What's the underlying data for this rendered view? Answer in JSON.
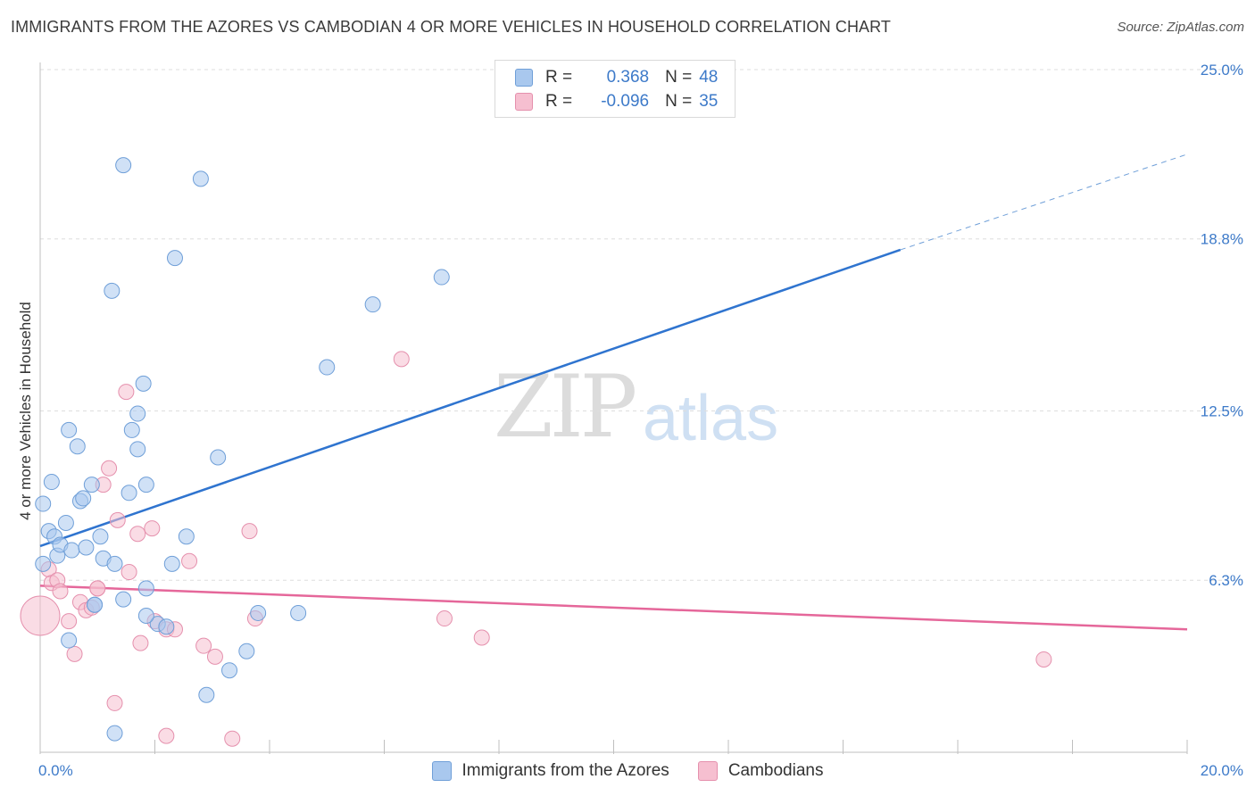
{
  "title": "IMMIGRANTS FROM THE AZORES VS CAMBODIAN 4 OR MORE VEHICLES IN HOUSEHOLD CORRELATION CHART",
  "source": "Source: ZipAtlas.com",
  "watermark": {
    "zip": "ZIP",
    "atlas": "atlas"
  },
  "legend": {
    "r_label": "R =",
    "n_label": "N =",
    "series1": {
      "r": "0.368",
      "n": "48"
    },
    "series2": {
      "r": "-0.096",
      "n": "35"
    }
  },
  "colors": {
    "blue_fill": "#a9c8ee",
    "blue_stroke": "#6f9fd8",
    "blue_line": "#2f74cf",
    "pink_fill": "#f6bfd0",
    "pink_stroke": "#e590ad",
    "pink_line": "#e5679a",
    "tick_text": "#3d7ac9"
  },
  "chart_data": {
    "type": "scatter",
    "title": "IMMIGRANTS FROM THE AZORES VS CAMBODIAN 4 OR MORE VEHICLES IN HOUSEHOLD CORRELATION CHART",
    "xlabel": "",
    "ylabel": "4 or more Vehicles in Household",
    "xlim": [
      0,
      20
    ],
    "ylim": [
      0,
      25
    ],
    "x_tick_labels": [
      {
        "value": 0,
        "label": "0.0%"
      },
      {
        "value": 20,
        "label": "20.0%"
      }
    ],
    "y_tick_labels": [
      {
        "value": 6.3,
        "label": "6.3%"
      },
      {
        "value": 12.5,
        "label": "12.5%"
      },
      {
        "value": 18.8,
        "label": "18.8%"
      },
      {
        "value": 25.0,
        "label": "25.0%"
      }
    ],
    "series": [
      {
        "name": "Immigrants from the Azores",
        "r": 0.368,
        "n": 48,
        "trend": {
          "x0": 0,
          "y0": 7.55,
          "x1": 15.0,
          "y1": 18.4,
          "dash_x1": 20.0,
          "dash_y1": 21.9
        },
        "points": [
          [
            0.05,
            9.1
          ],
          [
            0.05,
            6.9
          ],
          [
            0.15,
            8.1
          ],
          [
            0.2,
            9.9
          ],
          [
            0.25,
            7.9
          ],
          [
            0.3,
            7.2
          ],
          [
            0.35,
            7.6
          ],
          [
            0.45,
            8.4
          ],
          [
            0.5,
            11.8
          ],
          [
            0.5,
            4.1
          ],
          [
            0.55,
            7.4
          ],
          [
            0.65,
            11.2
          ],
          [
            0.7,
            9.2
          ],
          [
            0.75,
            9.3
          ],
          [
            0.8,
            7.5
          ],
          [
            0.9,
            9.8
          ],
          [
            0.95,
            5.4
          ],
          [
            1.05,
            7.9
          ],
          [
            1.1,
            7.1
          ],
          [
            1.25,
            16.9
          ],
          [
            1.3,
            6.9
          ],
          [
            1.45,
            21.5
          ],
          [
            1.45,
            5.6
          ],
          [
            1.55,
            9.5
          ],
          [
            1.6,
            11.8
          ],
          [
            1.7,
            12.4
          ],
          [
            1.7,
            11.1
          ],
          [
            1.8,
            13.5
          ],
          [
            1.85,
            9.8
          ],
          [
            1.85,
            6.0
          ],
          [
            2.05,
            4.7
          ],
          [
            2.2,
            4.6
          ],
          [
            2.3,
            6.9
          ],
          [
            2.35,
            18.1
          ],
          [
            2.55,
            7.9
          ],
          [
            2.8,
            21.0
          ],
          [
            1.85,
            5.0
          ],
          [
            2.9,
            2.1
          ],
          [
            3.1,
            10.8
          ],
          [
            3.3,
            3.0
          ],
          [
            3.6,
            3.7
          ],
          [
            3.8,
            5.1
          ],
          [
            4.5,
            5.1
          ],
          [
            5.0,
            14.1
          ],
          [
            5.8,
            16.4
          ],
          [
            7.0,
            17.4
          ],
          [
            1.3,
            0.7
          ],
          [
            0.95,
            5.4
          ]
        ]
      },
      {
        "name": "Cambodians",
        "r": -0.096,
        "n": 35,
        "trend": {
          "x0": 0,
          "y0": 6.1,
          "x1": 20.0,
          "y1": 4.5
        },
        "points": [
          [
            0.0,
            5.0
          ],
          [
            0.15,
            6.7
          ],
          [
            0.2,
            6.2
          ],
          [
            0.3,
            6.3
          ],
          [
            0.35,
            5.9
          ],
          [
            0.5,
            4.8
          ],
          [
            0.6,
            3.6
          ],
          [
            0.7,
            5.5
          ],
          [
            0.8,
            5.2
          ],
          [
            0.9,
            5.3
          ],
          [
            1.0,
            6.0
          ],
          [
            1.1,
            9.8
          ],
          [
            1.2,
            10.4
          ],
          [
            1.3,
            1.8
          ],
          [
            1.35,
            8.5
          ],
          [
            1.5,
            13.2
          ],
          [
            1.55,
            6.6
          ],
          [
            1.7,
            8.0
          ],
          [
            1.75,
            4.0
          ],
          [
            1.95,
            8.2
          ],
          [
            2.0,
            4.8
          ],
          [
            2.2,
            0.6
          ],
          [
            2.2,
            4.5
          ],
          [
            2.35,
            4.5
          ],
          [
            2.6,
            7.0
          ],
          [
            2.85,
            3.9
          ],
          [
            3.05,
            3.5
          ],
          [
            3.35,
            0.5
          ],
          [
            3.65,
            8.1
          ],
          [
            3.75,
            4.9
          ],
          [
            6.3,
            14.4
          ],
          [
            7.05,
            4.9
          ],
          [
            7.7,
            4.2
          ],
          [
            17.5,
            3.4
          ],
          [
            1.0,
            6.0
          ]
        ]
      }
    ]
  },
  "bottom_legend": {
    "series1": "Immigrants from the Azores",
    "series2": "Cambodians"
  }
}
